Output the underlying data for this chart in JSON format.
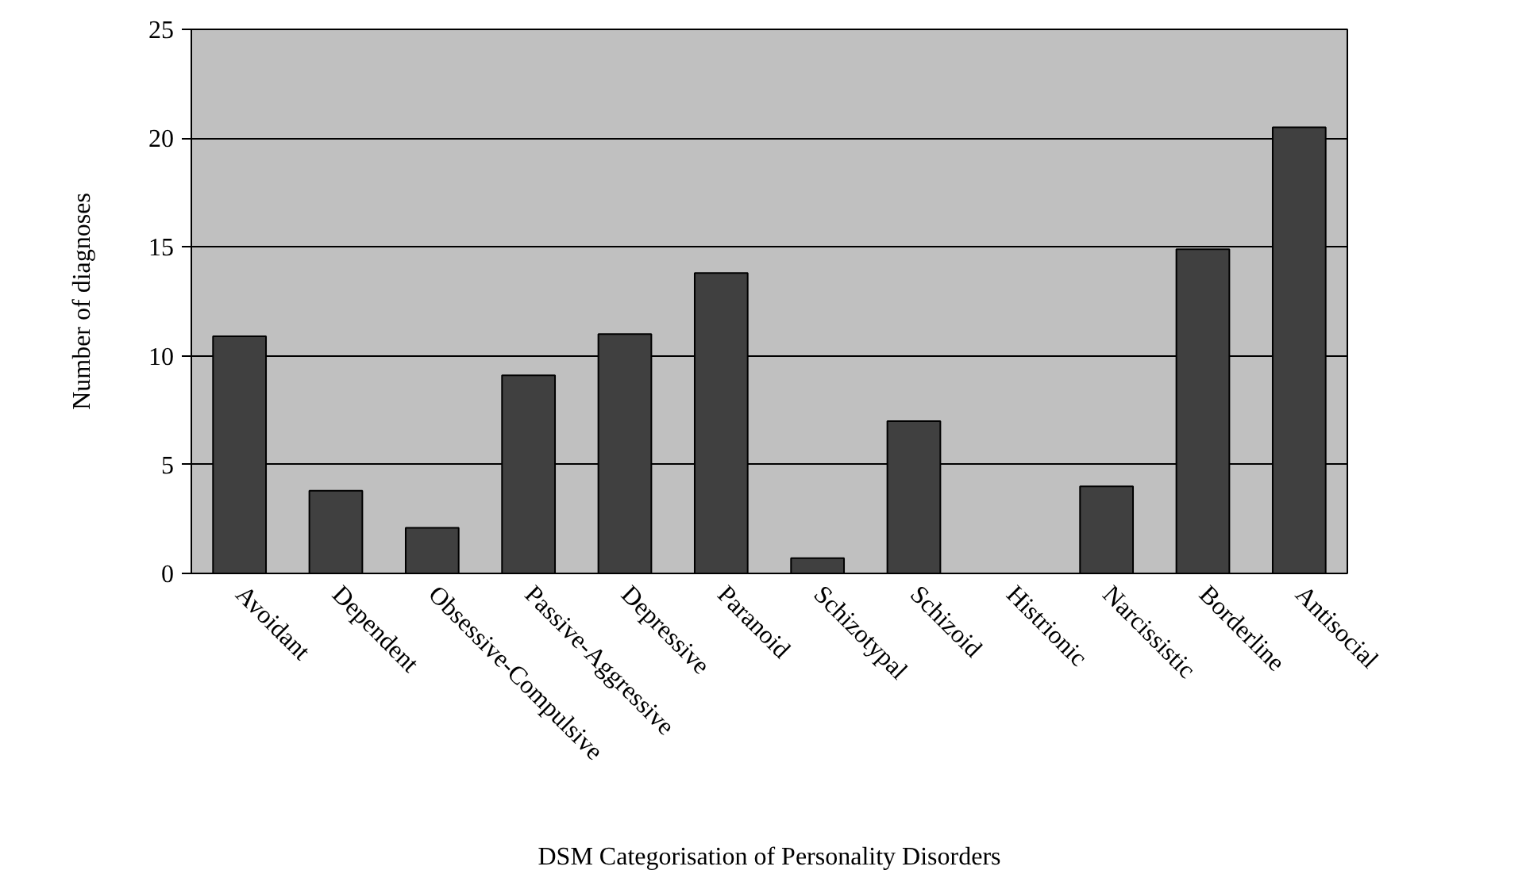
{
  "chart_data": {
    "type": "bar",
    "categories": [
      "Avoidant",
      "Dependent",
      "Obsessive-Compulsive",
      "Passive-Aggressive",
      "Depressive",
      "Paranoid",
      "Schizotypal",
      "Schizoid",
      "Histrionic",
      "Narcissistic",
      "Borderline",
      "Antisocial"
    ],
    "values": [
      10.9,
      3.8,
      2.1,
      9.1,
      11.0,
      13.8,
      0.7,
      7.0,
      0,
      4.0,
      14.9,
      20.5
    ],
    "color": "#404040",
    "xlabel": "DSM Categorisation of Personality Disorders",
    "ylabel": "Number of diagnoses",
    "ylim": [
      0,
      25
    ],
    "yticks": [
      0,
      5,
      10,
      15,
      20,
      25
    ],
    "grid": "y"
  }
}
